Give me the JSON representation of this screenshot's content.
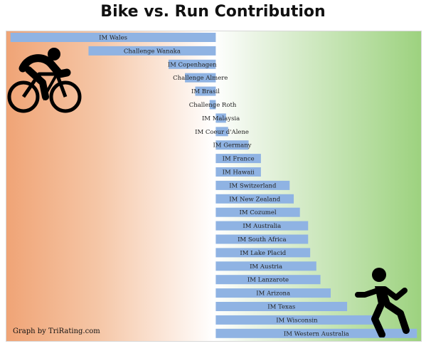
{
  "chart_data": {
    "type": "bar",
    "orientation": "horizontal",
    "title": "Bike vs. Run Contribution",
    "xlabel": "",
    "ylabel": "",
    "categories": [
      "IM Wales",
      "Challenge Wanaka",
      "IM Copenhagen",
      "Challenge Almere",
      "IM Brasil",
      "Challenge Roth",
      "IM Malaysia",
      "IM Coeur d'Alene",
      "IM Germany",
      "IM France",
      "IM Hawaii",
      "IM Switzerland",
      "IM New Zealand",
      "IM Cozumel",
      "IM Australia",
      "IM South Africa",
      "IM Lake Placid",
      "IM Austria",
      "IM Lanzarote",
      "IM Arizona",
      "IM Texas",
      "IM Wisconsin",
      "IM Western Australia"
    ],
    "values": [
      -100,
      -62,
      -23,
      -15,
      -10,
      -3,
      5,
      6,
      16,
      22,
      22,
      36,
      38,
      41,
      45,
      45,
      46,
      49,
      51,
      56,
      64,
      79,
      98
    ],
    "xlim": [
      -102,
      100
    ],
    "grid": false,
    "legend": "none",
    "colors": {
      "bar": "#8fb3e3",
      "bike_side": "#f0a476",
      "run_side": "#9dd27f"
    }
  },
  "credit": "Graph by TriRating.com",
  "icons": {
    "left": "cyclist-icon",
    "right": "runner-icon"
  }
}
